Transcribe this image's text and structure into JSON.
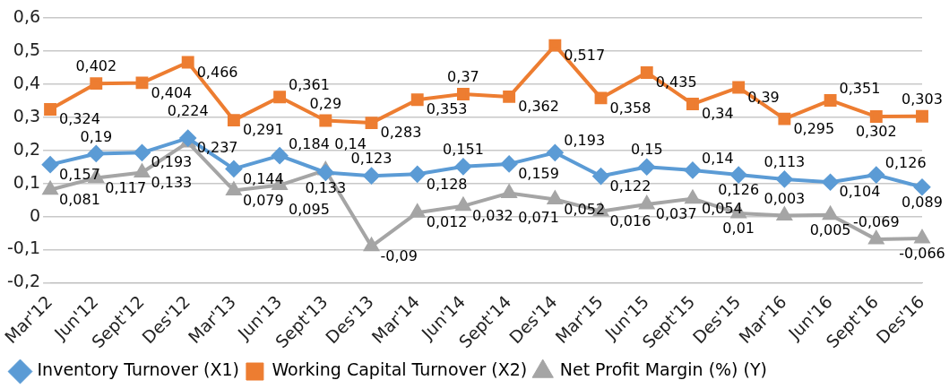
{
  "chart_data": {
    "type": "line",
    "categories": [
      "Mar'12",
      "Jun'12",
      "Sept'12",
      "Des'12",
      "Mar'13",
      "Jun'13",
      "Sept'13",
      "Des'13",
      "Mar'14",
      "Jun'14",
      "Sept'14",
      "Des'14",
      "Mar'15",
      "Jun'15",
      "Sept'15",
      "Des'15",
      "Mar'16",
      "Jun'16",
      "Sept'16",
      "Des'16"
    ],
    "series": [
      {
        "name": "Inventory Turnover (X1)",
        "color": "#5b9bd5",
        "marker": "diamond",
        "values": [
          0.157,
          0.19,
          0.193,
          0.237,
          0.144,
          0.184,
          0.133,
          0.123,
          0.128,
          0.151,
          0.159,
          0.193,
          0.122,
          0.15,
          0.14,
          0.126,
          0.113,
          0.104,
          0.126,
          0.089
        ],
        "value_labels": [
          "0,157",
          "0,19",
          "0,193",
          "0,237",
          "0,144",
          "0,184",
          "0,133",
          "0,123",
          "0,128",
          "0,151",
          "0,159",
          "0,193",
          "0,122",
          "0,15",
          "0,14",
          "0,126",
          "0,113",
          "0,104",
          "0,126",
          "0,089"
        ]
      },
      {
        "name": "Working Capital Turnover (X2)",
        "color": "#ed7d31",
        "marker": "square",
        "values": [
          0.324,
          0.402,
          0.404,
          0.466,
          0.291,
          0.361,
          0.29,
          0.283,
          0.353,
          0.37,
          0.362,
          0.517,
          0.358,
          0.435,
          0.34,
          0.39,
          0.295,
          0.351,
          0.302,
          0.303
        ],
        "value_labels": [
          "0,324",
          "0,402",
          "0,404",
          "0,466",
          "0,291",
          "0,361",
          "0,29",
          "0,283",
          "0,353",
          "0,37",
          "0,362",
          "0,517",
          "0,358",
          "0,435",
          "0,34",
          "0,39",
          "0,295",
          "0,351",
          "0,302",
          "0,303"
        ]
      },
      {
        "name": "Net Profit Margin (%) (Y)",
        "color": "#a5a5a5",
        "marker": "triangle",
        "values": [
          0.081,
          0.117,
          0.133,
          0.224,
          0.079,
          0.095,
          0.14,
          -0.09,
          0.012,
          0.032,
          0.071,
          0.052,
          0.016,
          0.037,
          0.054,
          0.01,
          0.003,
          0.005,
          -0.069,
          -0.066
        ],
        "value_labels": [
          "0,081",
          "0,117",
          "0,133",
          "0,224",
          "0,079",
          "0,095",
          "0,14",
          "-0,09",
          "0,012",
          "0,032",
          "0,071",
          "0,052",
          "0,016",
          "0,037",
          "0,054",
          "0,01",
          "0,003",
          "0,005",
          "-0,069",
          "-0,066"
        ]
      }
    ],
    "ylim": [
      -0.2,
      0.6
    ],
    "yticks": [
      {
        "value": -0.2,
        "label": "-0,2"
      },
      {
        "value": -0.1,
        "label": "-0,1"
      },
      0,
      {
        "value": 0.1,
        "label": "0,1"
      },
      {
        "value": 0.2,
        "label": "0,2"
      },
      {
        "value": 0.3,
        "label": "0,3"
      },
      {
        "value": 0.4,
        "label": "0,4"
      },
      {
        "value": 0.5,
        "label": "0,5"
      },
      {
        "value": 0.6,
        "label": "0,6"
      }
    ],
    "grid": "y",
    "legend": "bottom"
  }
}
